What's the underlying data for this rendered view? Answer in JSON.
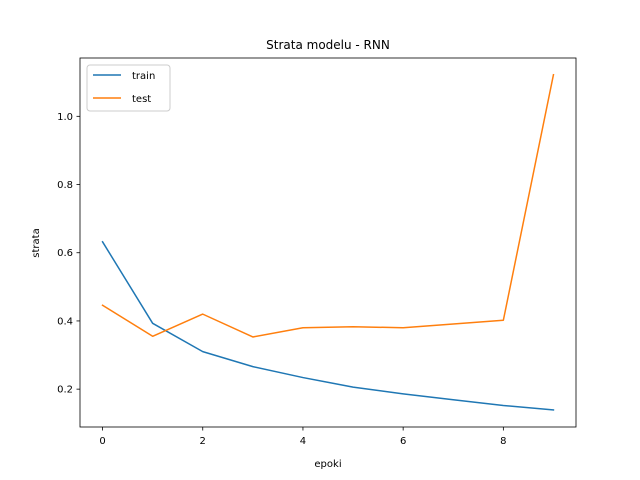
{
  "chart_data": {
    "type": "line",
    "title": "Strata modelu - RNN",
    "xlabel": "epoki",
    "ylabel": "strata",
    "x": [
      0,
      1,
      2,
      3,
      4,
      5,
      6,
      7,
      8,
      9
    ],
    "series": [
      {
        "name": "train",
        "color": "#1f77b4",
        "values": [
          0.632,
          0.393,
          0.31,
          0.266,
          0.234,
          0.206,
          0.186,
          0.169,
          0.152,
          0.139
        ]
      },
      {
        "name": "test",
        "color": "#ff7f0e",
        "values": [
          0.446,
          0.355,
          0.42,
          0.353,
          0.38,
          0.383,
          0.38,
          0.391,
          0.402,
          1.122
        ]
      }
    ],
    "xlim": [
      -0.45,
      9.45
    ],
    "ylim": [
      0.089,
      1.171
    ],
    "xticks": [
      0,
      2,
      4,
      6,
      8
    ],
    "yticks": [
      0.2,
      0.4,
      0.6,
      0.8,
      1.0
    ],
    "xtick_labels": [
      "0",
      "2",
      "4",
      "6",
      "8"
    ],
    "ytick_labels": [
      "0.2",
      "0.4",
      "0.6",
      "0.8",
      "1.0"
    ],
    "legend_position": "top-left",
    "grid": false
  }
}
